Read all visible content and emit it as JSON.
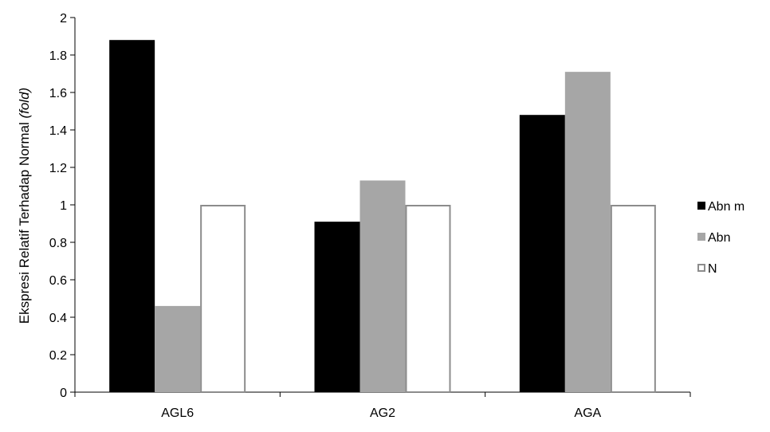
{
  "chart_data": {
    "type": "bar",
    "categories": [
      "AGL6",
      "AG2",
      "AGA"
    ],
    "series": [
      {
        "name": "Abn m",
        "values": [
          1.88,
          0.91,
          1.48
        ],
        "fill": "#000000",
        "stroke": "#000000"
      },
      {
        "name": "Abn",
        "values": [
          0.46,
          1.13,
          1.71
        ],
        "fill": "#a6a6a6",
        "stroke": "#a6a6a6"
      },
      {
        "name": "N",
        "values": [
          1.0,
          1.0,
          1.0
        ],
        "fill": "#ffffff",
        "stroke": "#8c8c8c"
      }
    ],
    "ylabel_main": "Ekspresi Relatif Terhadap Normal ",
    "ylabel_italic": "(fold)",
    "xlabel": "",
    "ylim": [
      0,
      2
    ],
    "yticks": [
      "0",
      "0.2",
      "0.4",
      "0.6",
      "0.8",
      "1",
      "1.2",
      "1.4",
      "1.6",
      "1.8",
      "2"
    ],
    "grid": false,
    "legend_position": "right"
  }
}
